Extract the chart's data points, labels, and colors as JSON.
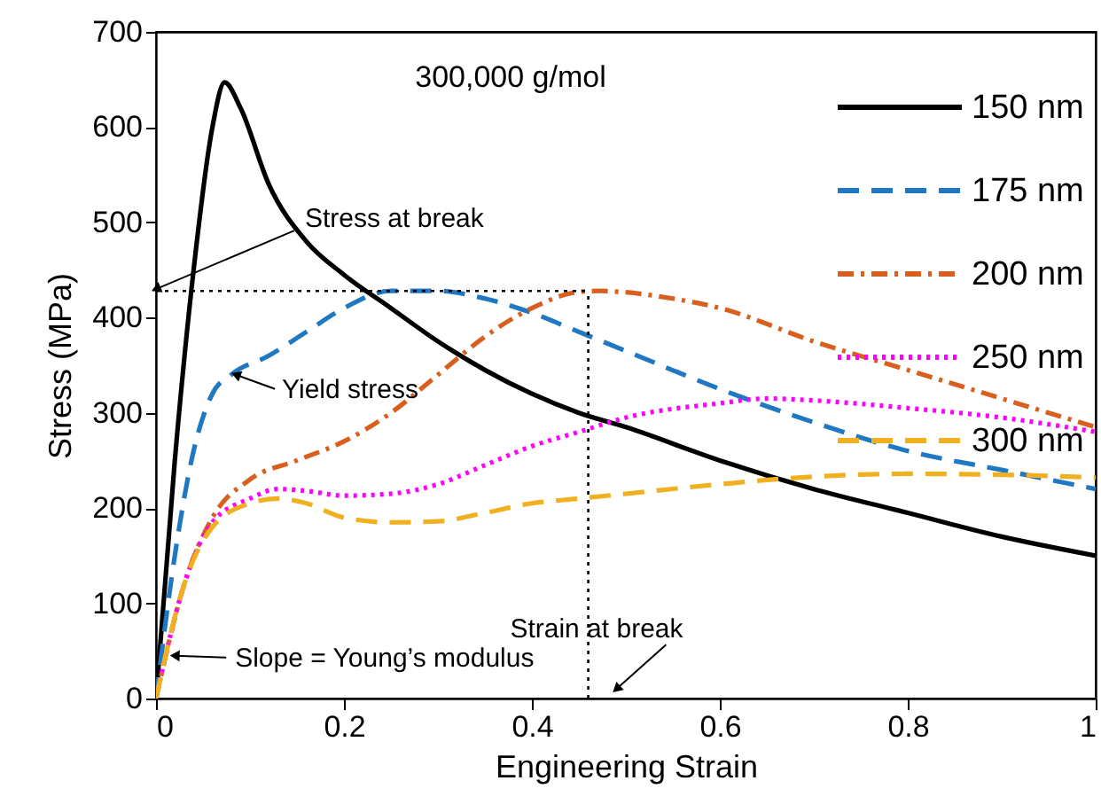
{
  "chart_data": {
    "type": "line",
    "xlabel": "Engineering Strain",
    "ylabel": "Stress (MPa)",
    "xlim": [
      0,
      1
    ],
    "ylim": [
      0,
      700
    ],
    "xticks": [
      {
        "value": 0,
        "label": "0"
      },
      0.2,
      0.4,
      0.6,
      0.8,
      {
        "value": 1,
        "label": "1"
      }
    ],
    "yticks": [
      0,
      100,
      200,
      300,
      400,
      500,
      600,
      700
    ],
    "grid": false,
    "legend": "top right",
    "marker": "none",
    "annotations": [
      "300,000 g/mol",
      {
        "text": "Stress at break",
        "x": 0,
        "y": 430
      },
      {
        "text": "Yield stress",
        "x": 0.085,
        "y": 340
      },
      {
        "text": "Slope = Young’s modulus",
        "x": 0.02,
        "y": 45
      },
      {
        "text": "Strain at break",
        "x": 0.49,
        "y": 10
      }
    ],
    "ref_lines": [
      {
        "axis": "y",
        "value": 428,
        "color": "#000000",
        "line_style": "dotted"
      },
      {
        "axis": "x",
        "value": 0.46,
        "color": "#000000",
        "line_style": "dotted"
      }
    ],
    "x": [
      0,
      0.02,
      0.04,
      0.06,
      0.073,
      0.09,
      0.12,
      0.16,
      0.2,
      0.25,
      0.3,
      0.35,
      0.4,
      0.45,
      0.5,
      0.6,
      0.7,
      0.8,
      0.9,
      1
    ],
    "series": [
      {
        "name": "150 nm",
        "color": "#000000",
        "line_style": "solid",
        "values": [
          0,
          250,
          450,
          600,
          647,
          620,
          540,
          480,
          445,
          410,
          375,
          345,
          320,
          300,
          285,
          250,
          220,
          195,
          170,
          150
        ]
      },
      {
        "name": "175 nm",
        "color": "#1f78c1",
        "line_style": "dashed",
        "x": [
          0,
          0.02,
          0.04,
          0.06,
          0.08,
          0.12,
          0.16,
          0.2,
          0.25,
          0.3,
          0.35,
          0.4,
          0.45,
          0.5,
          0.6,
          0.7,
          0.8,
          0.9,
          1
        ],
        "values": [
          0,
          150,
          260,
          320,
          340,
          360,
          385,
          410,
          428,
          428,
          420,
          405,
          385,
          365,
          325,
          290,
          260,
          240,
          220
        ]
      },
      {
        "name": "200 nm",
        "color": "#d95f1e",
        "line_style": "dashdot",
        "x": [
          0,
          0.03,
          0.06,
          0.1,
          0.15,
          0.2,
          0.25,
          0.3,
          0.35,
          0.4,
          0.45,
          0.47,
          0.55,
          0.6,
          0.7,
          0.8,
          0.9,
          1
        ],
        "values": [
          0,
          120,
          190,
          230,
          250,
          270,
          300,
          340,
          380,
          410,
          427,
          428,
          420,
          410,
          375,
          345,
          315,
          285
        ]
      },
      {
        "name": "250 nm",
        "color": "#ff00ff",
        "line_style": "dotted",
        "x": [
          0,
          0.03,
          0.06,
          0.1,
          0.13,
          0.16,
          0.2,
          0.25,
          0.3,
          0.35,
          0.4,
          0.45,
          0.5,
          0.6,
          0.65,
          0.7,
          0.8,
          0.9,
          1
        ],
        "values": [
          0,
          120,
          185,
          210,
          220,
          218,
          213,
          215,
          225,
          245,
          265,
          280,
          295,
          310,
          315,
          313,
          305,
          295,
          280
        ]
      },
      {
        "name": "300 nm",
        "color": "#f0b020",
        "line_style": "dashed",
        "x": [
          0,
          0.03,
          0.06,
          0.1,
          0.13,
          0.16,
          0.2,
          0.25,
          0.3,
          0.35,
          0.4,
          0.45,
          0.5,
          0.6,
          0.7,
          0.8,
          0.9,
          1
        ],
        "values": [
          0,
          120,
          180,
          205,
          210,
          205,
          190,
          185,
          186,
          195,
          205,
          210,
          215,
          225,
          233,
          236,
          235,
          232
        ]
      }
    ]
  }
}
